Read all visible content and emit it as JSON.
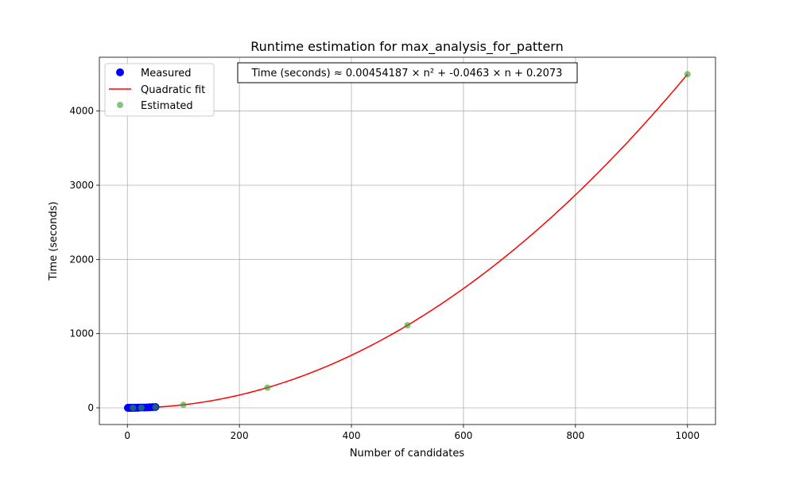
{
  "chart_data": {
    "type": "scatter",
    "title": "Runtime estimation for max_analysis_for_pattern",
    "xlabel": "Number of candidates",
    "ylabel": "Time (seconds)",
    "xlim": [
      -50,
      1050
    ],
    "ylim": [
      -225,
      4725
    ],
    "xticks": [
      0,
      200,
      400,
      600,
      800,
      1000
    ],
    "yticks": [
      0,
      1000,
      2000,
      3000,
      4000
    ],
    "grid": true,
    "legend_position": "upper-left",
    "annotation": "Time (seconds) ≈ 0.00454187 × n² + -0.0463 × n + 0.2073",
    "fit": {
      "a": 0.00454187,
      "b": -0.0463,
      "c": 0.2073,
      "x_range": [
        1,
        1000
      ]
    },
    "series": [
      {
        "name": "Measured",
        "kind": "scatter",
        "color": "#0000ff",
        "x": [
          1,
          2,
          3,
          4,
          5,
          6,
          8,
          10,
          12,
          15,
          18,
          20,
          25,
          30,
          35,
          40,
          45,
          50
        ],
        "y": [
          0.2,
          0.2,
          0.2,
          0.3,
          0.3,
          0.3,
          0.4,
          0.6,
          0.9,
          1.3,
          1.8,
          2.1,
          3.9,
          4.5,
          6.0,
          7.6,
          9.3,
          11.2
        ]
      },
      {
        "name": "Quadratic fit",
        "kind": "line",
        "color": "#ff0000"
      },
      {
        "name": "Estimated",
        "kind": "scatter",
        "color": "#2ca02c",
        "x": [
          10,
          25,
          50,
          100,
          250,
          500,
          1000
        ],
        "y": [
          0.2,
          1.9,
          9.2,
          41,
          272,
          1113,
          4496
        ]
      }
    ]
  }
}
